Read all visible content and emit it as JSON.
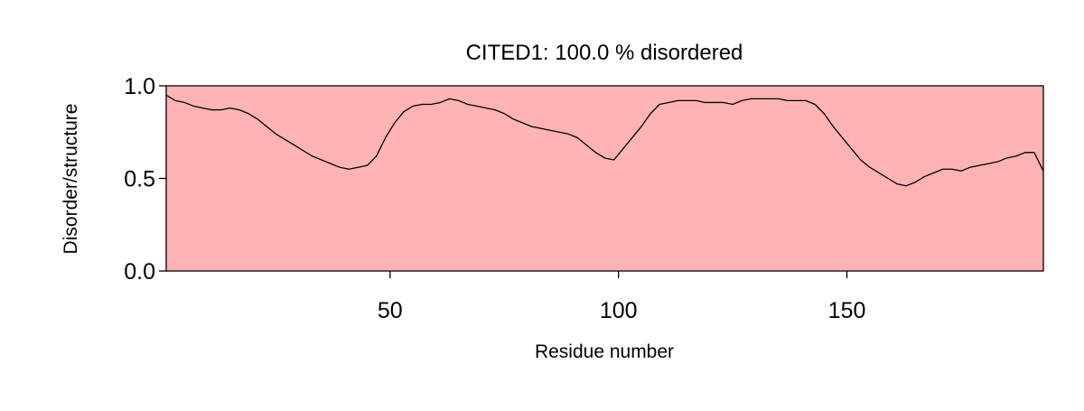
{
  "chart_data": {
    "type": "line",
    "title": "CITED1: 100.0 % disordered",
    "xlabel": "Residue number",
    "ylabel": "Disorder/structure",
    "xlim": [
      1,
      193
    ],
    "ylim": [
      0.0,
      1.0
    ],
    "x_ticks": [
      50,
      100,
      150
    ],
    "x_tick_labels": [
      "50",
      "100",
      "150"
    ],
    "y_ticks": [
      0.0,
      0.5,
      1.0
    ],
    "y_tick_labels": [
      "0.0",
      "0.5",
      "1.0"
    ],
    "grid": false,
    "legend": "none",
    "disordered_region": {
      "start": 1,
      "end": 193,
      "color": "#ffb3b3"
    },
    "line_color": "#000000",
    "series": [
      {
        "x": [
          1,
          3,
          5,
          7,
          9,
          11,
          13,
          15,
          17,
          19,
          21,
          23,
          25,
          27,
          29,
          31,
          33,
          35,
          37,
          39,
          41,
          43,
          45,
          47,
          49,
          51,
          53,
          55,
          57,
          59,
          61,
          63,
          65,
          67,
          69,
          71,
          73,
          75,
          77,
          79,
          81,
          83,
          85,
          87,
          89,
          91,
          93,
          95,
          97,
          99,
          101,
          103,
          105,
          107,
          109,
          111,
          113,
          115,
          117,
          119,
          121,
          123,
          125,
          127,
          129,
          131,
          133,
          135,
          137,
          139,
          141,
          143,
          145,
          147,
          149,
          151,
          153,
          155,
          157,
          159,
          161,
          163,
          165,
          167,
          169,
          171,
          173,
          175,
          177,
          179,
          181,
          183,
          185,
          187,
          189,
          191,
          193
        ],
        "values": [
          0.95,
          0.92,
          0.91,
          0.89,
          0.88,
          0.87,
          0.87,
          0.88,
          0.87,
          0.85,
          0.82,
          0.78,
          0.74,
          0.71,
          0.68,
          0.65,
          0.62,
          0.6,
          0.58,
          0.56,
          0.55,
          0.56,
          0.57,
          0.62,
          0.72,
          0.8,
          0.86,
          0.89,
          0.9,
          0.9,
          0.91,
          0.93,
          0.92,
          0.9,
          0.89,
          0.88,
          0.87,
          0.85,
          0.82,
          0.8,
          0.78,
          0.77,
          0.76,
          0.75,
          0.74,
          0.72,
          0.68,
          0.64,
          0.61,
          0.6,
          0.66,
          0.72,
          0.78,
          0.85,
          0.9,
          0.91,
          0.92,
          0.92,
          0.92,
          0.91,
          0.91,
          0.91,
          0.9,
          0.92,
          0.93,
          0.93,
          0.93,
          0.93,
          0.92,
          0.92,
          0.92,
          0.9,
          0.85,
          0.78,
          0.72,
          0.66,
          0.6,
          0.56,
          0.53,
          0.5,
          0.47,
          0.46,
          0.48,
          0.51,
          0.53,
          0.55,
          0.55,
          0.54,
          0.56,
          0.57,
          0.58,
          0.59,
          0.61,
          0.62,
          0.64,
          0.64,
          0.54
        ]
      }
    ]
  }
}
